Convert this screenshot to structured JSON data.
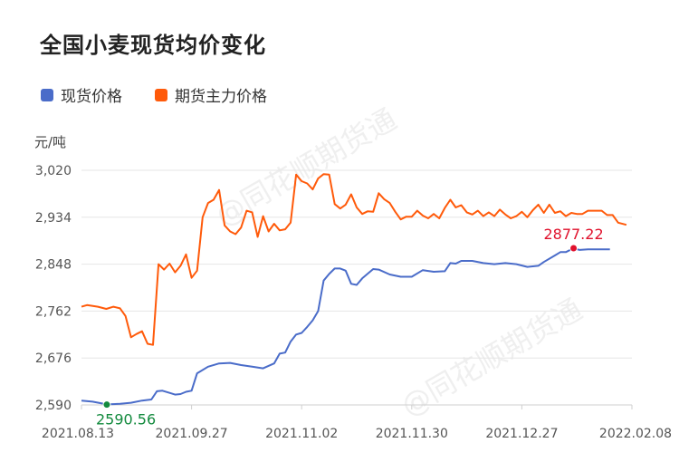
{
  "title": "全国小麦现货均价变化",
  "unit_label": "元/吨",
  "watermark": "@同花顺期货通",
  "legend": [
    {
      "label": "现货价格",
      "color": "#4a6cc9"
    },
    {
      "label": "期货主力价格",
      "color": "#ff5a0a"
    }
  ],
  "chart_data": {
    "type": "line",
    "title": "全国小麦现货均价变化",
    "ylabel": "元/吨",
    "ylim": [
      2590,
      3020
    ],
    "yticks": [
      "2,590",
      "2,676",
      "2,762",
      "2,848",
      "2,934",
      "3,020"
    ],
    "xticks": [
      "2021.08.13",
      "2021.09.27",
      "2021.11.02",
      "2021.11.30",
      "2021.12.27",
      "2022.02.08"
    ],
    "grid": true,
    "legend_position": "top-left",
    "x_domain": [
      0,
      100
    ],
    "series": [
      {
        "name": "现货价格",
        "color": "#4a6cc9",
        "points": [
          [
            0.0,
            2598
          ],
          [
            2.0,
            2596
          ],
          [
            4.6,
            2591
          ],
          [
            7.0,
            2592
          ],
          [
            9.0,
            2594
          ],
          [
            11.0,
            2598
          ],
          [
            12.7,
            2600
          ],
          [
            13.7,
            2615
          ],
          [
            14.7,
            2616
          ],
          [
            16.0,
            2612
          ],
          [
            17.0,
            2609
          ],
          [
            18.0,
            2610
          ],
          [
            19.0,
            2614
          ],
          [
            20.0,
            2616
          ],
          [
            21.0,
            2648
          ],
          [
            23.0,
            2660
          ],
          [
            25.0,
            2666
          ],
          [
            27.0,
            2667
          ],
          [
            29.0,
            2663
          ],
          [
            31.0,
            2660
          ],
          [
            33.0,
            2657
          ],
          [
            35.0,
            2666
          ],
          [
            36.0,
            2684
          ],
          [
            37.0,
            2686
          ],
          [
            38.0,
            2706
          ],
          [
            39.0,
            2719
          ],
          [
            40.0,
            2722
          ],
          [
            41.0,
            2733
          ],
          [
            42.0,
            2745
          ],
          [
            43.0,
            2762
          ],
          [
            44.0,
            2818
          ],
          [
            45.0,
            2830
          ],
          [
            46.0,
            2840
          ],
          [
            47.0,
            2840
          ],
          [
            48.0,
            2836
          ],
          [
            49.0,
            2812
          ],
          [
            50.0,
            2810
          ],
          [
            51.0,
            2822
          ],
          [
            53.0,
            2839
          ],
          [
            54.0,
            2838
          ],
          [
            56.0,
            2829
          ],
          [
            58.0,
            2825
          ],
          [
            60.0,
            2825
          ],
          [
            62.0,
            2837
          ],
          [
            64.0,
            2834
          ],
          [
            66.0,
            2835
          ],
          [
            67.0,
            2850
          ],
          [
            68.0,
            2849
          ],
          [
            69.0,
            2854
          ],
          [
            71.0,
            2854
          ],
          [
            73.0,
            2850
          ],
          [
            75.0,
            2848
          ],
          [
            77.0,
            2850
          ],
          [
            79.0,
            2848
          ],
          [
            81.0,
            2843
          ],
          [
            83.0,
            2845
          ],
          [
            84.0,
            2852
          ],
          [
            86.0,
            2864
          ],
          [
            87.0,
            2870
          ],
          [
            88.0,
            2870
          ],
          [
            89.4,
            2877.22
          ],
          [
            90.5,
            2874
          ],
          [
            92.0,
            2875
          ],
          [
            94.0,
            2875
          ],
          [
            96.0,
            2875
          ]
        ]
      },
      {
        "name": "期货主力价格",
        "color": "#ff5a0a",
        "points": [
          [
            0.0,
            2770
          ],
          [
            1.0,
            2773
          ],
          [
            3.0,
            2770
          ],
          [
            4.5,
            2766
          ],
          [
            5.8,
            2770
          ],
          [
            7.0,
            2767
          ],
          [
            8.0,
            2753
          ],
          [
            9.0,
            2714
          ],
          [
            10.0,
            2720
          ],
          [
            11.0,
            2725
          ],
          [
            12.0,
            2702
          ],
          [
            13.0,
            2700
          ],
          [
            14.0,
            2848
          ],
          [
            15.0,
            2838
          ],
          [
            16.0,
            2849
          ],
          [
            17.0,
            2833
          ],
          [
            18.0,
            2845
          ],
          [
            19.0,
            2866
          ],
          [
            20.0,
            2823
          ],
          [
            21.0,
            2836
          ],
          [
            22.0,
            2934
          ],
          [
            23.0,
            2960
          ],
          [
            24.0,
            2966
          ],
          [
            25.0,
            2984
          ],
          [
            26.0,
            2919
          ],
          [
            27.0,
            2908
          ],
          [
            28.0,
            2903
          ],
          [
            29.0,
            2915
          ],
          [
            30.0,
            2946
          ],
          [
            31.0,
            2943
          ],
          [
            32.0,
            2898
          ],
          [
            33.0,
            2936
          ],
          [
            34.0,
            2908
          ],
          [
            35.0,
            2922
          ],
          [
            36.0,
            2910
          ],
          [
            37.0,
            2912
          ],
          [
            38.0,
            2924
          ],
          [
            39.0,
            3012
          ],
          [
            40.0,
            3000
          ],
          [
            41.0,
            2996
          ],
          [
            42.0,
            2985
          ],
          [
            43.0,
            3005
          ],
          [
            44.0,
            3013
          ],
          [
            45.0,
            3012
          ],
          [
            46.0,
            2958
          ],
          [
            47.0,
            2950
          ],
          [
            48.0,
            2957
          ],
          [
            49.0,
            2976
          ],
          [
            50.0,
            2952
          ],
          [
            51.0,
            2940
          ],
          [
            52.0,
            2945
          ],
          [
            53.0,
            2944
          ],
          [
            54.0,
            2978
          ],
          [
            55.0,
            2967
          ],
          [
            56.0,
            2960
          ],
          [
            57.0,
            2944
          ],
          [
            58.0,
            2930
          ],
          [
            59.0,
            2935
          ],
          [
            60.0,
            2935
          ],
          [
            61.0,
            2946
          ],
          [
            62.0,
            2937
          ],
          [
            63.0,
            2932
          ],
          [
            64.0,
            2940
          ],
          [
            65.0,
            2932
          ],
          [
            66.0,
            2951
          ],
          [
            67.0,
            2966
          ],
          [
            68.0,
            2952
          ],
          [
            69.0,
            2956
          ],
          [
            70.0,
            2943
          ],
          [
            71.0,
            2939
          ],
          [
            72.0,
            2946
          ],
          [
            73.0,
            2936
          ],
          [
            74.0,
            2943
          ],
          [
            75.0,
            2936
          ],
          [
            76.0,
            2948
          ],
          [
            77.0,
            2939
          ],
          [
            78.0,
            2932
          ],
          [
            79.0,
            2936
          ],
          [
            80.0,
            2944
          ],
          [
            81.0,
            2934
          ],
          [
            82.0,
            2947
          ],
          [
            83.0,
            2957
          ],
          [
            84.0,
            2942
          ],
          [
            85.0,
            2957
          ],
          [
            86.0,
            2942
          ],
          [
            87.0,
            2945
          ],
          [
            88.0,
            2936
          ],
          [
            89.0,
            2942
          ],
          [
            90.0,
            2940
          ],
          [
            91.0,
            2940
          ],
          [
            92.0,
            2946
          ],
          [
            93.0,
            2946
          ],
          [
            94.5,
            2946
          ],
          [
            95.5,
            2938
          ],
          [
            96.5,
            2938
          ],
          [
            97.5,
            2924
          ],
          [
            99.0,
            2920
          ]
        ]
      }
    ],
    "annotations": [
      {
        "text": "2590.56",
        "series": "现货价格",
        "x": 4.6,
        "y": 2590.56,
        "color": "#138a3e"
      },
      {
        "text": "2877.22",
        "series": "现货价格",
        "x": 89.4,
        "y": 2877.22,
        "color": "#e0112c"
      }
    ]
  }
}
